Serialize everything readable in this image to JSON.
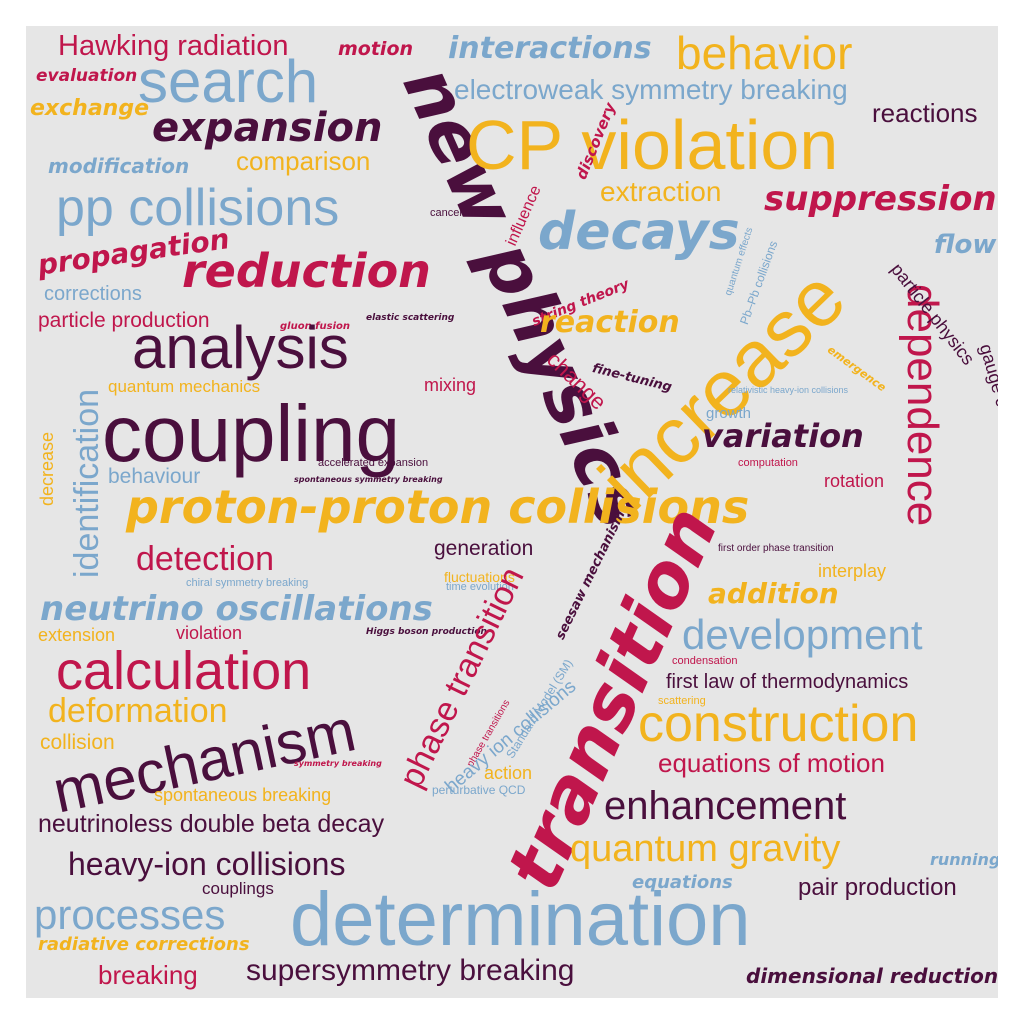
{
  "colors": {
    "background": "#e6e6e6",
    "dark_purple": "#4a0f3d",
    "crimson": "#c0164c",
    "gold": "#f2b31e",
    "steel_blue": "#7ba7cc"
  },
  "words": [
    "Hawking radiation",
    "motion",
    "interactions",
    "behavior",
    "evaluation",
    "search",
    "new physics",
    "electroweak symmetry breaking",
    "exchange",
    "expansion",
    "CP violation",
    "reactions",
    "discovery",
    "modification",
    "comparison",
    "extraction",
    "suppression",
    "pp collisions",
    "cancellation",
    "influence",
    "decays",
    "flow",
    "propagation",
    "reduction",
    "increase",
    "dependence",
    "particle physics",
    "quantum effects",
    "Pb–Pb collisions",
    "corrections",
    "string theory",
    "reaction",
    "particle production",
    "gluon fusion",
    "elastic scattering",
    "analysis",
    "gauge coupling unification",
    "emergence",
    "fine-tuning",
    "change",
    "mixing",
    "quantum mechanics",
    "relativistic heavy-ion collisions",
    "identification",
    "coupling",
    "growth",
    "variation",
    "decrease",
    "accelerated expansion",
    "computation",
    "behaviour",
    "spontaneous symmetry breaking",
    "rotation",
    "proton-proton collisions",
    "detection",
    "generation",
    "first order phase transition",
    "chiral symmetry breaking",
    "fluctuations",
    "time evolution",
    "seesaw mechanism",
    "interplay",
    "addition",
    "neutrino oscillations",
    "extension",
    "violation",
    "Higgs boson production",
    "development",
    "transition",
    "phase transition",
    "Standard Model (SM)",
    "calculation",
    "condensation",
    "first law of thermodynamics",
    "deformation",
    "phase transitions",
    "heavy ion collisions",
    "scattering",
    "mechanism",
    "construction",
    "collision",
    "symmetry breaking",
    "action",
    "equations of motion",
    "perturbative QCD",
    "spontaneous breaking",
    "enhancement",
    "neutrinoless double beta decay",
    "quantum gravity",
    "heavy-ion collisions",
    "running",
    "couplings",
    "equations",
    "pair production",
    "processes",
    "determination",
    "radiative corrections",
    "breaking",
    "supersymmetry breaking",
    "dimensional reduction"
  ]
}
